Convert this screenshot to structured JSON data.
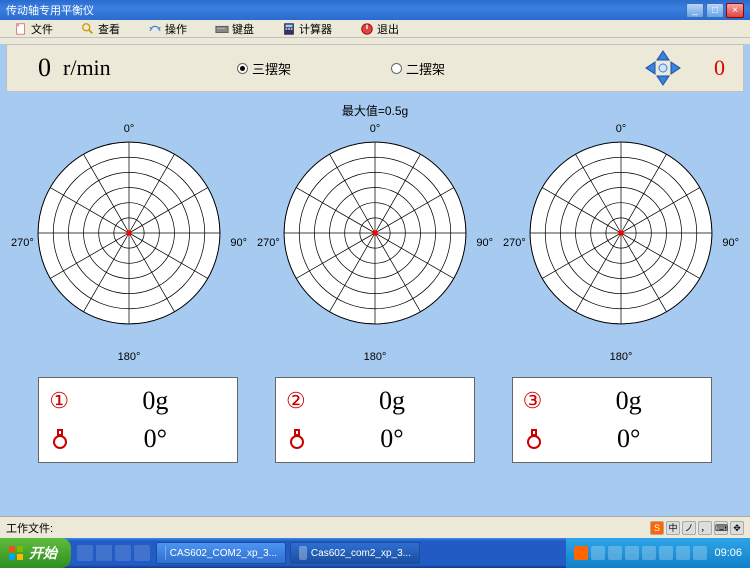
{
  "window": {
    "title": "传动轴专用平衡仪"
  },
  "menu": {
    "file": "文件",
    "view": "查看",
    "operate": "操作",
    "keyboard": "键盘",
    "calculator": "计算器",
    "exit": "退出"
  },
  "topbar": {
    "rpm_value": "0",
    "rpm_unit": "r/min",
    "radio3_label": "三摆架",
    "radio2_label": "二摆架",
    "radio_selected": "3",
    "count": "0"
  },
  "max_label": "最大值=0.5g",
  "polar": {
    "deg0": "0°",
    "deg90": "90°",
    "deg180": "180°",
    "deg270": "270°",
    "rings": 6,
    "spokes": 12,
    "grid_color": "#000000",
    "bg_color": "#ffffff",
    "center_color": "#ff0000",
    "charts": [
      {
        "index": "①",
        "weight": "0g",
        "angle": "0°"
      },
      {
        "index": "②",
        "weight": "0g",
        "angle": "0°"
      },
      {
        "index": "③",
        "weight": "0g",
        "angle": "0°"
      }
    ]
  },
  "status": {
    "workfile": "工作文件:",
    "ime": "中"
  },
  "taskbar": {
    "start": "开始",
    "task1": "CAS602_COM2_xp_3...",
    "task2": "Cas602_com2_xp_3...",
    "clock": "09:06"
  },
  "colors": {
    "main_bg": "#a6caf0",
    "panel_bg": "#ece9d8",
    "accent_red": "#cc0000"
  }
}
